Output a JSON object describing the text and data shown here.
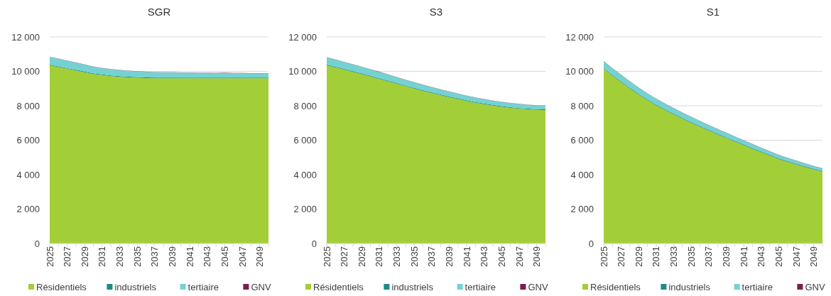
{
  "chart_data": [
    {
      "type": "area",
      "title": "SGR",
      "stacked": true,
      "grid": "y",
      "legend": "bottom",
      "ylim": [
        0,
        12000
      ],
      "yticks": [
        {
          "value": 0,
          "label": "0"
        },
        {
          "value": 2000,
          "label": "2 000"
        },
        {
          "value": 4000,
          "label": "4 000"
        },
        {
          "value": 6000,
          "label": "6 000"
        },
        {
          "value": 8000,
          "label": "8 000"
        },
        {
          "value": 10000,
          "label": "10 000"
        },
        {
          "value": 12000,
          "label": "12 000"
        }
      ],
      "categories": [
        "2025",
        null,
        "2027",
        null,
        "2029",
        null,
        "2031",
        null,
        "2033",
        null,
        "2035",
        null,
        "2037",
        null,
        "2039",
        null,
        "2041",
        null,
        "2043",
        null,
        "2045",
        null,
        "2047",
        null,
        "2049",
        null
      ],
      "series": [
        {
          "name": "Résidentiels",
          "color": "#a2cf37",
          "values": [
            10350,
            10250,
            10150,
            10050,
            9950,
            9850,
            9780,
            9720,
            9680,
            9650,
            9630,
            9610,
            9600,
            9600,
            9600,
            9600,
            9600,
            9600,
            9600,
            9600,
            9600,
            9600,
            9600,
            9600,
            9600,
            9600
          ]
        },
        {
          "name": "industriels",
          "color": "#1f8a86",
          "values": [
            40,
            40,
            40,
            40,
            40,
            40,
            40,
            40,
            40,
            40,
            40,
            40,
            40,
            40,
            40,
            40,
            40,
            40,
            40,
            40,
            40,
            40,
            40,
            40,
            40,
            40
          ]
        },
        {
          "name": "tertiaire",
          "color": "#74d2d2",
          "values": [
            450,
            440,
            430,
            420,
            400,
            380,
            370,
            360,
            350,
            340,
            330,
            320,
            310,
            300,
            300,
            290,
            290,
            280,
            280,
            270,
            270,
            260,
            260,
            250,
            250,
            250
          ]
        },
        {
          "name": "GNV",
          "color": "#7b1e4f",
          "values": [
            10,
            10,
            10,
            10,
            10,
            10,
            10,
            10,
            10,
            10,
            10,
            10,
            10,
            10,
            10,
            10,
            10,
            10,
            10,
            10,
            20,
            10,
            10,
            10,
            10,
            10
          ]
        }
      ]
    },
    {
      "type": "area",
      "title": "S3",
      "stacked": true,
      "grid": "y",
      "legend": "bottom",
      "ylim": [
        0,
        12000
      ],
      "yticks": [
        {
          "value": 0,
          "label": "0"
        },
        {
          "value": 2000,
          "label": "2 000"
        },
        {
          "value": 4000,
          "label": "4 000"
        },
        {
          "value": 6000,
          "label": "6 000"
        },
        {
          "value": 8000,
          "label": "8 000"
        },
        {
          "value": 10000,
          "label": "10 000"
        },
        {
          "value": 12000,
          "label": "12 000"
        }
      ],
      "categories": [
        "2025",
        null,
        "2027",
        null,
        "2029",
        null,
        "2031",
        null,
        "2033",
        null,
        "2035",
        null,
        "2037",
        null,
        "2039",
        null,
        "2041",
        null,
        "2043",
        null,
        "2045",
        null,
        "2047",
        null,
        "2049",
        null
      ],
      "series": [
        {
          "name": "Résidentiels",
          "color": "#a2cf37",
          "values": [
            10350,
            10230,
            10100,
            9970,
            9840,
            9700,
            9560,
            9420,
            9280,
            9140,
            9000,
            8870,
            8740,
            8620,
            8500,
            8390,
            8280,
            8180,
            8090,
            8010,
            7940,
            7880,
            7830,
            7790,
            7760,
            7750
          ]
        },
        {
          "name": "industriels",
          "color": "#1f8a86",
          "values": [
            40,
            40,
            40,
            40,
            40,
            40,
            40,
            40,
            40,
            40,
            40,
            40,
            40,
            40,
            40,
            40,
            40,
            40,
            40,
            40,
            40,
            40,
            40,
            40,
            40,
            40
          ]
        },
        {
          "name": "tertiaire",
          "color": "#74d2d2",
          "values": [
            420,
            410,
            400,
            390,
            380,
            370,
            360,
            350,
            340,
            330,
            320,
            310,
            300,
            290,
            280,
            270,
            260,
            250,
            250,
            240,
            240,
            230,
            230,
            220,
            220,
            220
          ]
        },
        {
          "name": "GNV",
          "color": "#7b1e4f",
          "values": [
            10,
            10,
            10,
            10,
            10,
            10,
            20,
            10,
            10,
            10,
            10,
            10,
            10,
            10,
            20,
            10,
            10,
            10,
            10,
            10,
            10,
            10,
            10,
            10,
            10,
            10
          ]
        }
      ]
    },
    {
      "type": "area",
      "title": "S1",
      "stacked": true,
      "grid": "y",
      "legend": "bottom",
      "ylim": [
        0,
        12000
      ],
      "yticks": [
        {
          "value": 0,
          "label": "0"
        },
        {
          "value": 2000,
          "label": "2 000"
        },
        {
          "value": 4000,
          "label": "4 000"
        },
        {
          "value": 6000,
          "label": "6 000"
        },
        {
          "value": 8000,
          "label": "8 000"
        },
        {
          "value": 10000,
          "label": "10 000"
        },
        {
          "value": 12000,
          "label": "12 000"
        }
      ],
      "categories": [
        "2025",
        null,
        "2027",
        null,
        "2029",
        null,
        "2031",
        null,
        "2033",
        null,
        "2035",
        null,
        "2037",
        null,
        "2039",
        null,
        "2041",
        null,
        "2043",
        null,
        "2045",
        null,
        "2047",
        null,
        "2049",
        null
      ],
      "series": [
        {
          "name": "Résidentiels",
          "color": "#a2cf37",
          "values": [
            10150,
            9750,
            9370,
            9000,
            8650,
            8320,
            8020,
            7750,
            7500,
            7250,
            7010,
            6780,
            6560,
            6340,
            6130,
            5920,
            5710,
            5500,
            5300,
            5100,
            4900,
            4740,
            4590,
            4440,
            4300,
            4170
          ]
        },
        {
          "name": "industriels",
          "color": "#1f8a86",
          "values": [
            40,
            40,
            40,
            40,
            40,
            40,
            40,
            40,
            40,
            40,
            40,
            40,
            40,
            40,
            40,
            40,
            40,
            40,
            40,
            40,
            40,
            40,
            40,
            40,
            40,
            40
          ]
        },
        {
          "name": "tertiaire",
          "color": "#74d2d2",
          "values": [
            400,
            390,
            380,
            370,
            360,
            350,
            340,
            330,
            320,
            310,
            300,
            290,
            280,
            270,
            260,
            250,
            240,
            230,
            220,
            210,
            200,
            190,
            180,
            170,
            160,
            150
          ]
        },
        {
          "name": "GNV",
          "color": "#7b1e4f",
          "values": [
            10,
            10,
            10,
            10,
            10,
            10,
            10,
            10,
            10,
            10,
            10,
            10,
            10,
            10,
            10,
            10,
            10,
            10,
            10,
            10,
            10,
            10,
            10,
            10,
            10,
            10
          ]
        }
      ]
    }
  ]
}
